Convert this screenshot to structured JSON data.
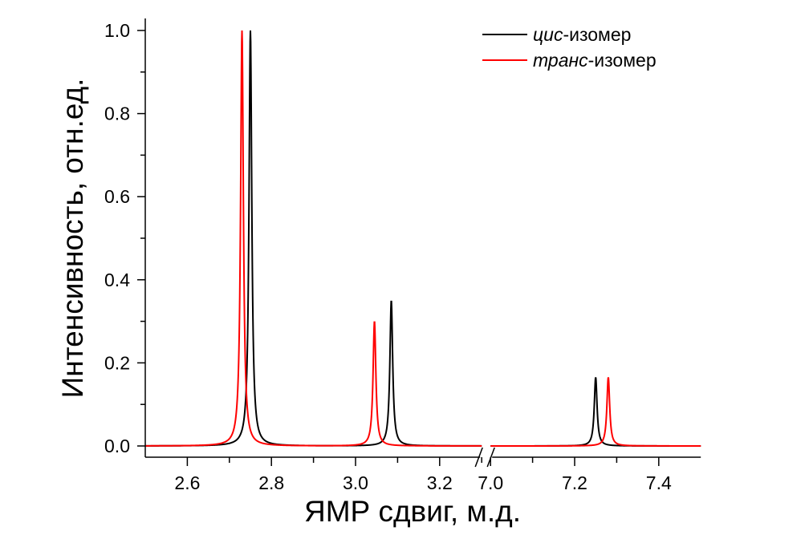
{
  "chart_data": {
    "type": "line",
    "xlabel": "ЯМР сдвиг, м.д.",
    "ylabel": "Интенсивность, отн.ед.",
    "x_segments": [
      [
        2.5,
        3.3
      ],
      [
        7.0,
        7.5
      ]
    ],
    "x_axis_break": true,
    "ylim": [
      0,
      1.0
    ],
    "x_ticks": [
      "2.6",
      "2.8",
      "3.0",
      "3.2",
      "7.0",
      "7.2",
      "7.4"
    ],
    "y_ticks": [
      "0.0",
      "0.2",
      "0.4",
      "0.6",
      "0.8",
      "1.0"
    ],
    "grid": false,
    "legend_position": "top-right",
    "series": [
      {
        "name_italic": "цис",
        "name_rest": "-изомер",
        "color": "#000000",
        "peaks": [
          {
            "x": 2.75,
            "y": 1.0
          },
          {
            "x": 3.085,
            "y": 0.35
          },
          {
            "x": 7.25,
            "y": 0.165
          }
        ]
      },
      {
        "name_italic": "транс",
        "name_rest": "-изомер",
        "color": "#ff0000",
        "peaks": [
          {
            "x": 2.73,
            "y": 1.0
          },
          {
            "x": 3.045,
            "y": 0.3
          },
          {
            "x": 7.28,
            "y": 0.165
          }
        ]
      }
    ]
  }
}
